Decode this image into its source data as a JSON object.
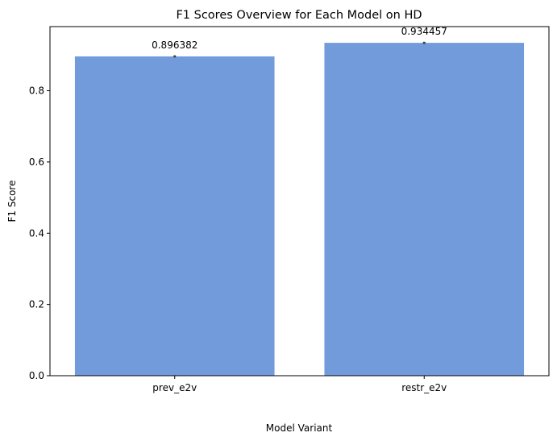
{
  "chart_data": {
    "type": "bar",
    "title": "F1 Scores Overview for Each Model on HD",
    "xlabel": "Model Variant",
    "ylabel": "F1 Score",
    "categories": [
      "prev_e2v",
      "restr_e2v"
    ],
    "values": [
      0.896382,
      0.934457
    ],
    "value_labels": [
      "0.896382",
      "0.934457"
    ],
    "error": [
      0.006,
      0.006
    ],
    "ylim": [
      0,
      0.98
    ],
    "yticks": [
      0.0,
      0.2,
      0.4,
      0.6,
      0.8
    ],
    "ytick_labels": [
      "0.0",
      "0.2",
      "0.4",
      "0.6",
      "0.8"
    ],
    "bar_color": "#729bdb",
    "errorbar_color": "#3f3f3f",
    "grid": false,
    "legend": "none"
  }
}
